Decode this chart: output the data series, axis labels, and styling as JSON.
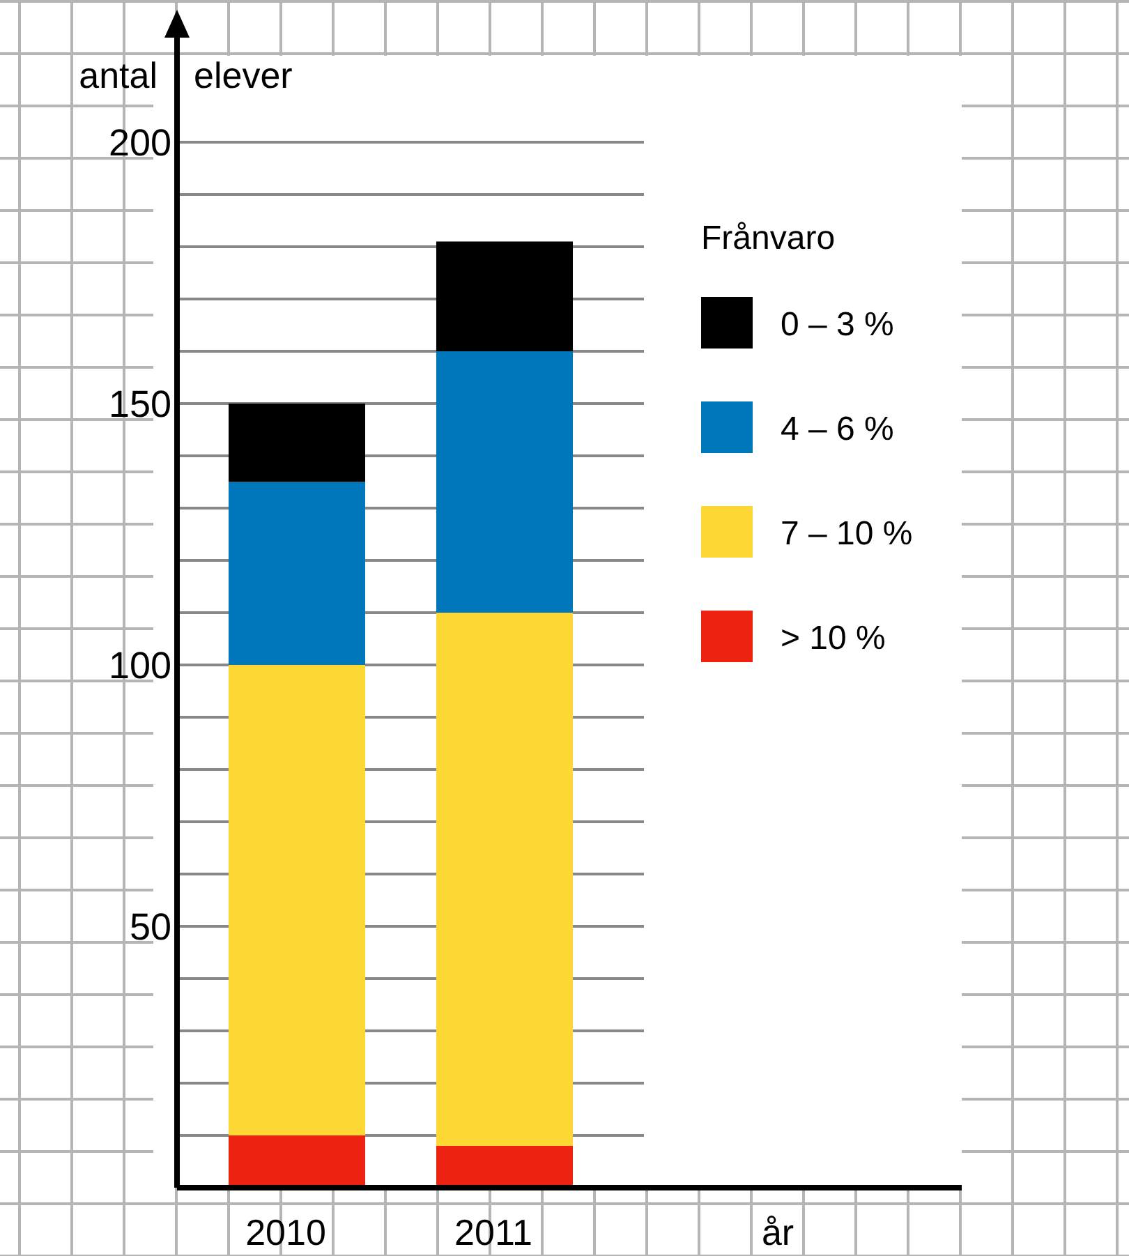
{
  "chart_data": {
    "type": "bar",
    "stacked": true,
    "ylabel": "antal elever",
    "xlabel": "år",
    "legend_title": "Frånvaro",
    "legend": "right",
    "grid": "y",
    "categories": [
      "2010",
      "2011"
    ],
    "series": [
      {
        "name": "> 10 %",
        "color": "#ee2211",
        "values": [
          10,
          8
        ]
      },
      {
        "name": "7 – 10 %",
        "color": "#fdd835",
        "values": [
          90,
          102
        ]
      },
      {
        "name": "4 – 6 %",
        "color": "#0077bb",
        "values": [
          35,
          50
        ]
      },
      {
        "name": "0 – 3 %",
        "color": "#000000",
        "values": [
          15,
          21
        ]
      }
    ],
    "ylim": [
      0,
      220
    ],
    "yticks": [
      {
        "value": 10,
        "label": null
      },
      {
        "value": 20,
        "label": null
      },
      {
        "value": 30,
        "label": null
      },
      {
        "value": 40,
        "label": null
      },
      50,
      {
        "value": 60,
        "label": null
      },
      {
        "value": 70,
        "label": null
      },
      {
        "value": 80,
        "label": null
      },
      {
        "value": 90,
        "label": null
      },
      100,
      {
        "value": 110,
        "label": null
      },
      {
        "value": 120,
        "label": null
      },
      {
        "value": 130,
        "label": null
      },
      {
        "value": 140,
        "label": null
      },
      150,
      {
        "value": 160,
        "label": null
      },
      {
        "value": 170,
        "label": null
      },
      {
        "value": 180,
        "label": null
      },
      {
        "value": 190,
        "label": null
      },
      200
    ]
  }
}
